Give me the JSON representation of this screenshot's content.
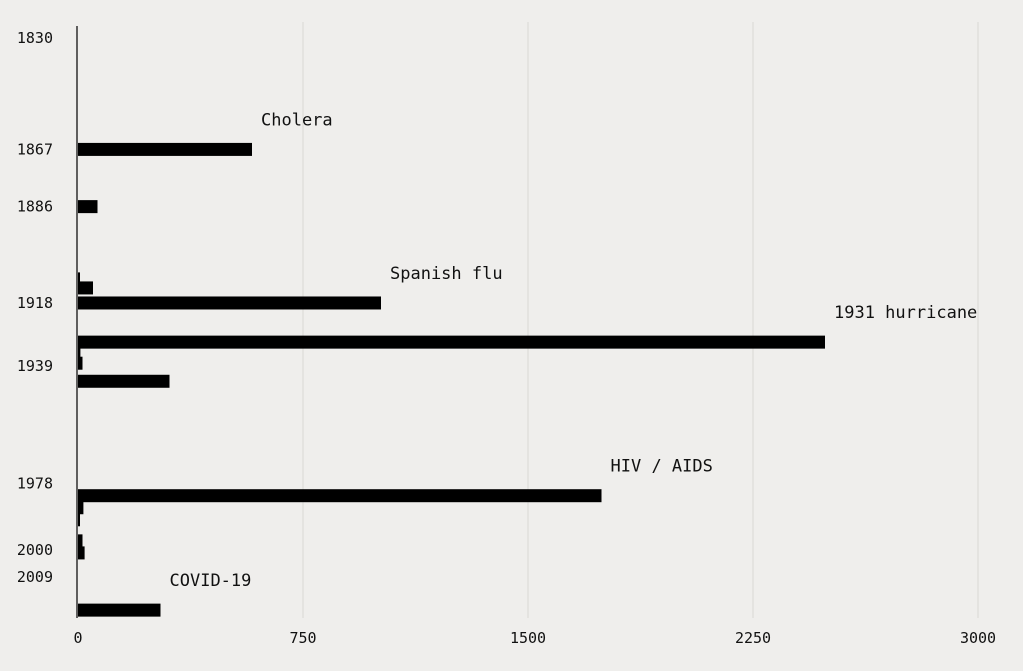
{
  "chart_data": {
    "type": "bar",
    "orientation": "horizontal",
    "x_ticks": [
      0,
      750,
      1500,
      2250,
      3000
    ],
    "xlim": [
      0,
      3000
    ],
    "y_range": [
      1830,
      2015
    ],
    "y_ticks": [
      1830,
      1867,
      1886,
      1918,
      1939,
      1978,
      2000,
      2009
    ],
    "grid": "vertical",
    "bars": [
      {
        "year": 1867,
        "value": 580
      },
      {
        "year": 1886,
        "value": 65
      },
      {
        "year": 1910,
        "value": 5
      },
      {
        "year": 1913,
        "value": 50
      },
      {
        "year": 1918,
        "value": 1010
      },
      {
        "year": 1931,
        "value": 2490
      },
      {
        "year": 1935,
        "value": 8
      },
      {
        "year": 1938,
        "value": 15
      },
      {
        "year": 1944,
        "value": 305
      },
      {
        "year": 1982,
        "value": 1745
      },
      {
        "year": 1986,
        "value": 18
      },
      {
        "year": 1990,
        "value": 5
      },
      {
        "year": 1997,
        "value": 15
      },
      {
        "year": 2001,
        "value": 22
      },
      {
        "year": 2020,
        "value": 275
      }
    ],
    "annotations": [
      {
        "text": "Cholera",
        "year": 1867,
        "value": 580
      },
      {
        "text": "Spanish flu",
        "year": 1918,
        "value": 1010
      },
      {
        "text": "1931 hurricane",
        "year": 1931,
        "value": 2490
      },
      {
        "text": "HIV / AIDS",
        "year": 1982,
        "value": 1745
      },
      {
        "text": "COVID-19",
        "year": 2020,
        "value": 275
      }
    ]
  }
}
